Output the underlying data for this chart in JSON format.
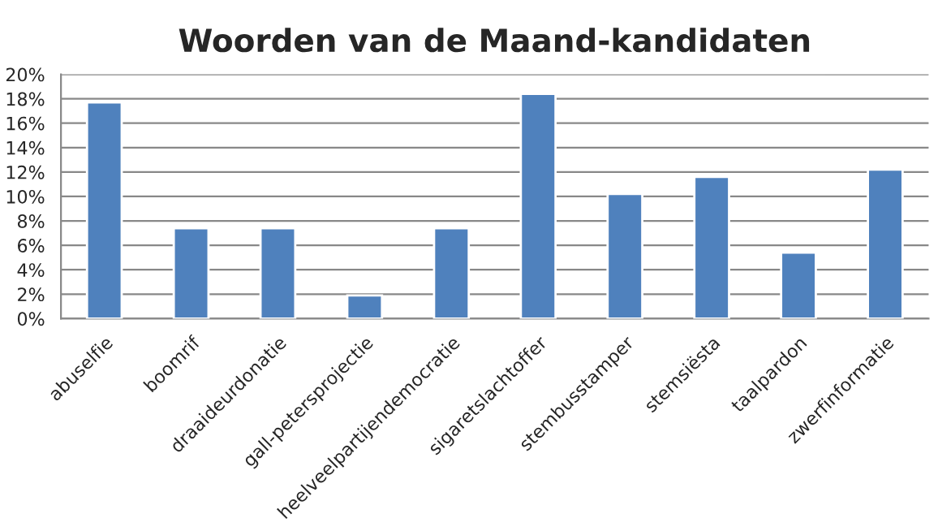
{
  "chart_data": {
    "type": "bar",
    "title": "Woorden van de Maand-kandidaten",
    "categories": [
      "abuselfie",
      "boomrif",
      "draaideurdonatie",
      "gall-petersprojectie",
      "heelveelpartijendemocratie",
      "sigaretslachtoffer",
      "stembusstamper",
      "stemsiësta",
      "taalpardon",
      "zwerfinformatie"
    ],
    "values": [
      17.7,
      7.4,
      7.4,
      1.9,
      7.4,
      18.4,
      10.2,
      11.6,
      5.4,
      12.2
    ],
    "color": "#4f81bd",
    "ylim": [
      0,
      20
    ],
    "yticks": [
      {
        "value": 0,
        "label": "0%"
      },
      {
        "value": 2,
        "label": "2%"
      },
      {
        "value": 4,
        "label": "4%"
      },
      {
        "value": 6,
        "label": "6%"
      },
      {
        "value": 8,
        "label": "8%"
      },
      {
        "value": 10,
        "label": "10%"
      },
      {
        "value": 12,
        "label": "12%"
      },
      {
        "value": 14,
        "label": "14%"
      },
      {
        "value": 16,
        "label": "16%"
      },
      {
        "value": 18,
        "label": "18%"
      },
      {
        "value": 20,
        "label": "20%"
      }
    ],
    "grid": "y"
  }
}
